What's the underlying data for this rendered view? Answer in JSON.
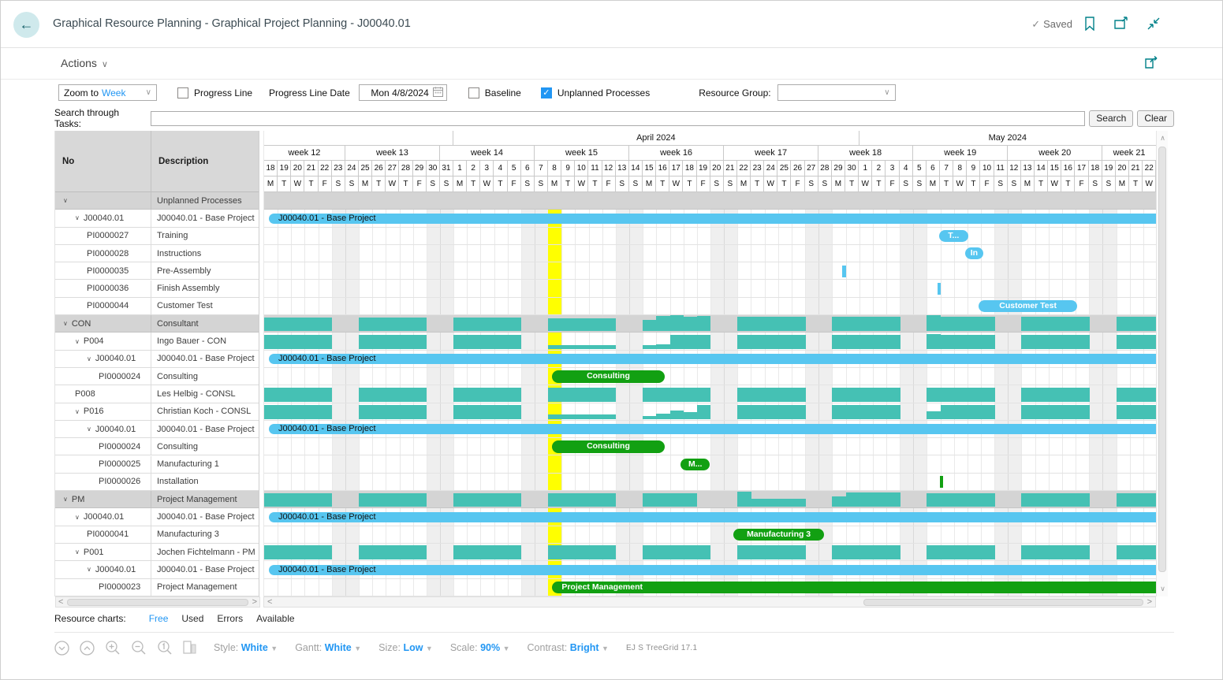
{
  "header": {
    "title": "Graphical Resource Planning - Graphical Project Planning - J00040.01",
    "saved_label": "Saved"
  },
  "actions": {
    "label": "Actions"
  },
  "controls": {
    "zoom_to_prefix": "Zoom to",
    "zoom_to_value": "Week",
    "progress_line_label": "Progress Line",
    "progress_line_date_label": "Progress Line Date",
    "progress_line_date_value": "Mon 4/8/2024",
    "baseline_label": "Baseline",
    "unplanned_label": "Unplanned Processes",
    "resource_group_label": "Resource Group:",
    "progress_line_checked": false,
    "baseline_checked": false,
    "unplanned_checked": true
  },
  "search": {
    "label": "Search through Tasks:",
    "value": "",
    "search_button": "Search",
    "clear_button": "Clear"
  },
  "table": {
    "columns": [
      "No",
      "Description"
    ]
  },
  "footer": {
    "resource_charts_label": "Resource charts:",
    "links": [
      {
        "label": "Free",
        "active": true
      },
      {
        "label": "Used",
        "active": false
      },
      {
        "label": "Errors",
        "active": false
      },
      {
        "label": "Available",
        "active": false
      }
    ]
  },
  "toolbar": {
    "style_label": "Style:",
    "style_value": "White",
    "gantt_label": "Gantt:",
    "gantt_value": "White",
    "size_label": "Size:",
    "size_value": "Low",
    "scale_label": "Scale:",
    "scale_value": "90%",
    "contrast_label": "Contrast:",
    "contrast_value": "Bright",
    "brand": "EJ S TreeGrid 17.1"
  },
  "colors": {
    "accent_teal": "#008089",
    "link_blue": "#2196F3",
    "bar_blue": "#57c6f0",
    "bar_green": "#12a012",
    "hist_teal": "#45c1b4",
    "progress_yellow": "#ffff00",
    "group_gray": "#d4d4d4"
  },
  "gantt": {
    "timeline": {
      "months": [
        {
          "label": "",
          "days": 14
        },
        {
          "label": "April 2024",
          "days": 30
        },
        {
          "label": "May 2024",
          "days": 22
        }
      ],
      "weeks": [
        {
          "label": "week 12",
          "days": 6
        },
        {
          "label": "week 13",
          "days": 7
        },
        {
          "label": "week 14",
          "days": 7
        },
        {
          "label": "week 15",
          "days": 7
        },
        {
          "label": "week 16",
          "days": 7
        },
        {
          "label": "week 17",
          "days": 7
        },
        {
          "label": "week 18",
          "days": 7
        },
        {
          "label": "week 19",
          "days": 7
        },
        {
          "label": "week 20",
          "days": 7
        },
        {
          "label": "week 21",
          "days": 4
        }
      ],
      "day_numbers": [
        18,
        19,
        20,
        21,
        22,
        23,
        24,
        25,
        26,
        27,
        28,
        29,
        30,
        31,
        1,
        2,
        3,
        4,
        5,
        6,
        7,
        8,
        9,
        10,
        11,
        12,
        13,
        14,
        15,
        16,
        17,
        18,
        19,
        20,
        21,
        22,
        23,
        24,
        25,
        26,
        27,
        28,
        29,
        30,
        1,
        2,
        3,
        4,
        5,
        6,
        7,
        8,
        9,
        10,
        11,
        12,
        13,
        14,
        15,
        16,
        17,
        18,
        19,
        20,
        21,
        22
      ],
      "day_letter_cycle": [
        "M",
        "T",
        "W",
        "T",
        "F",
        "S",
        "S"
      ],
      "progress_day_index": 21
    },
    "rows": [
      {
        "no": "",
        "desc": "Unplanned Processes",
        "level": 0,
        "chevron": true,
        "group": true
      },
      {
        "no": "J00040.01",
        "desc": "J00040.01 - Base Project",
        "level": 1,
        "chevron": true,
        "bars": [
          {
            "type": "summary",
            "s": 0.35,
            "e": 66,
            "label": "J00040.01 - Base Project"
          }
        ]
      },
      {
        "no": "PI0000027",
        "desc": "Training",
        "level": 2,
        "bars": [
          {
            "type": "bluepill",
            "s": 49.9,
            "e": 52.05,
            "label": "T..."
          }
        ]
      },
      {
        "no": "PI0000028",
        "desc": "Instructions",
        "level": 2,
        "bars": [
          {
            "type": "bluepill",
            "s": 51.85,
            "e": 53.15,
            "label": "In"
          }
        ]
      },
      {
        "no": "PI0000035",
        "desc": "Pre-Assembly",
        "level": 2,
        "bars": [
          {
            "type": "bluetick",
            "s": 42.75,
            "e": 43.0
          }
        ]
      },
      {
        "no": "PI0000036",
        "desc": "Finish Assembly",
        "level": 2,
        "bars": [
          {
            "type": "bluetick",
            "s": 49.8,
            "e": 50.05
          }
        ]
      },
      {
        "no": "PI0000044",
        "desc": "Customer Test",
        "level": 2,
        "bars": [
          {
            "type": "bluepill",
            "s": 52.85,
            "e": 60.1,
            "label": "Customer Test"
          }
        ]
      },
      {
        "no": "CON",
        "desc": "Consultant",
        "level": 0,
        "chevron": true,
        "group": true,
        "hist": [
          {
            "s": 0,
            "v": [
              0.85,
              0.85,
              0.85,
              0.85,
              0.85
            ]
          },
          {
            "s": 7,
            "v": [
              0.85,
              0.85,
              0.85,
              0.85,
              0.85
            ]
          },
          {
            "s": 14,
            "v": [
              0.85,
              0.85,
              0.85,
              0.85,
              0.85
            ]
          },
          {
            "s": 21,
            "v": [
              0.8,
              0.8,
              0.8,
              0.8,
              0.8
            ]
          },
          {
            "s": 28,
            "v": [
              0.72,
              0.95,
              1,
              0.9,
              0.98
            ]
          },
          {
            "s": 35,
            "v": [
              0.9,
              0.9,
              0.9,
              0.9,
              0.9
            ]
          },
          {
            "s": 42,
            "v": [
              0.9,
              0.9,
              0.9,
              0.9,
              0.9
            ]
          },
          {
            "s": 49,
            "v": [
              1,
              0.9,
              0.9,
              0.9,
              0.9
            ]
          },
          {
            "s": 56,
            "v": [
              0.9,
              0.9,
              0.9,
              0.9,
              0.9
            ]
          },
          {
            "s": 63,
            "v": [
              0.9,
              0.9,
              0.9
            ]
          }
        ]
      },
      {
        "no": "P004",
        "desc": "Ingo Bauer - CON",
        "level": 1,
        "chevron": true,
        "hist": [
          {
            "s": 0,
            "v": [
              0.95,
              0.95,
              0.95,
              0.95,
              0.95
            ]
          },
          {
            "s": 7,
            "v": [
              0.95,
              0.95,
              0.95,
              0.95,
              0.95
            ]
          },
          {
            "s": 14,
            "v": [
              0.95,
              0.95,
              0.95,
              0.95,
              0.95
            ]
          },
          {
            "s": 21,
            "v": [
              0.25,
              0.25,
              0.25,
              0.25,
              0.25
            ]
          },
          {
            "s": 28,
            "v": [
              0.25,
              0.3,
              0.95,
              0.95,
              0.95
            ]
          },
          {
            "s": 35,
            "v": [
              0.95,
              0.95,
              0.95,
              0.95,
              0.95
            ]
          },
          {
            "s": 42,
            "v": [
              0.95,
              0.95,
              0.95,
              0.95,
              0.95
            ]
          },
          {
            "s": 49,
            "v": [
              1,
              0.95,
              0.95,
              0.95,
              0.95
            ]
          },
          {
            "s": 56,
            "v": [
              0.95,
              0.95,
              0.95,
              0.95,
              0.95
            ]
          },
          {
            "s": 63,
            "v": [
              0.95,
              0.95,
              0.95
            ]
          }
        ]
      },
      {
        "no": "J00040.01",
        "desc": "J00040.01 - Base Project",
        "level": 2,
        "chevron": true,
        "bars": [
          {
            "type": "summary",
            "s": 0.35,
            "e": 66,
            "label": "J00040.01 - Base Project"
          }
        ]
      },
      {
        "no": "PI0000024",
        "desc": "Consulting",
        "level": 3,
        "bars": [
          {
            "type": "greenpill",
            "s": 21.3,
            "e": 29.6,
            "label": "Consulting"
          }
        ]
      },
      {
        "no": "P008",
        "desc": "Les Helbig - CONSL",
        "level": 1,
        "hist": [
          {
            "s": 0,
            "v": [
              0.95,
              0.95,
              0.95,
              0.95,
              0.95
            ]
          },
          {
            "s": 7,
            "v": [
              0.95,
              0.95,
              0.95,
              0.95,
              0.95
            ]
          },
          {
            "s": 14,
            "v": [
              0.95,
              0.95,
              0.95,
              0.95,
              0.95
            ]
          },
          {
            "s": 21,
            "v": [
              0.95,
              0.95,
              0.95,
              0.95,
              0.95
            ]
          },
          {
            "s": 28,
            "v": [
              0.95,
              0.95,
              0.95,
              0.95,
              0.95
            ]
          },
          {
            "s": 35,
            "v": [
              0.95,
              0.95,
              0.95,
              0.95,
              0.95
            ]
          },
          {
            "s": 42,
            "v": [
              0.95,
              0.95,
              0.95,
              0.95,
              0.95
            ]
          },
          {
            "s": 49,
            "v": [
              0.95,
              0.95,
              0.95,
              0.95,
              0.95
            ]
          },
          {
            "s": 56,
            "v": [
              0.95,
              0.95,
              0.95,
              0.95,
              0.95
            ]
          },
          {
            "s": 63,
            "v": [
              0.95,
              0.95,
              0.95
            ]
          }
        ]
      },
      {
        "no": "P016",
        "desc": "Christian Koch - CONSL",
        "level": 1,
        "chevron": true,
        "hist": [
          {
            "s": 0,
            "v": [
              0.95,
              0.95,
              0.95,
              0.95,
              0.95
            ]
          },
          {
            "s": 7,
            "v": [
              0.95,
              0.95,
              0.95,
              0.95,
              0.95
            ]
          },
          {
            "s": 14,
            "v": [
              0.95,
              0.95,
              0.95,
              0.95,
              0.95
            ]
          },
          {
            "s": 21,
            "v": [
              0.3,
              0.3,
              0.3,
              0.3,
              0.3
            ]
          },
          {
            "s": 28,
            "v": [
              0.2,
              0.35,
              0.6,
              0.45,
              0.95
            ]
          },
          {
            "s": 35,
            "v": [
              0.95,
              0.95,
              0.95,
              0.95,
              0.95
            ]
          },
          {
            "s": 42,
            "v": [
              0.95,
              0.95,
              0.95,
              0.95,
              0.95
            ]
          },
          {
            "s": 49,
            "v": [
              0.5,
              0.95,
              0.95,
              0.95,
              0.95
            ]
          },
          {
            "s": 56,
            "v": [
              0.95,
              0.95,
              0.95,
              0.95,
              0.95
            ]
          },
          {
            "s": 63,
            "v": [
              0.95,
              0.95,
              0.95
            ]
          }
        ]
      },
      {
        "no": "J00040.01",
        "desc": "J00040.01 - Base Project",
        "level": 2,
        "chevron": true,
        "bars": [
          {
            "type": "summary",
            "s": 0.35,
            "e": 66,
            "label": "J00040.01 - Base Project"
          }
        ]
      },
      {
        "no": "PI0000024",
        "desc": "Consulting",
        "level": 3,
        "bars": [
          {
            "type": "greenpill",
            "s": 21.3,
            "e": 29.6,
            "label": "Consulting"
          }
        ]
      },
      {
        "no": "PI0000025",
        "desc": "Manufacturing 1",
        "level": 3,
        "bars": [
          {
            "type": "greenpill",
            "s": 30.8,
            "e": 32.95,
            "label": "M..."
          }
        ]
      },
      {
        "no": "PI0000026",
        "desc": "Installation",
        "level": 3,
        "bars": [
          {
            "type": "greentick",
            "s": 49.95,
            "e": 50.2
          }
        ]
      },
      {
        "no": "PM",
        "desc": "Project Management",
        "level": 0,
        "chevron": true,
        "group": true,
        "hist": [
          {
            "s": 0,
            "v": [
              0.85,
              0.85,
              0.85,
              0.85,
              0.85
            ]
          },
          {
            "s": 7,
            "v": [
              0.85,
              0.85,
              0.85,
              0.85,
              0.85
            ]
          },
          {
            "s": 14,
            "v": [
              0.85,
              0.85,
              0.85,
              0.85,
              0.85
            ]
          },
          {
            "s": 21,
            "v": [
              0.85,
              0.85,
              0.85,
              0.85,
              0.85
            ]
          },
          {
            "s": 28,
            "v": [
              0.85,
              0.85,
              0.85,
              0.85,
              0
            ]
          },
          {
            "s": 35,
            "v": [
              0.95,
              0.5,
              0.5,
              0.5,
              0.5
            ]
          },
          {
            "s": 42,
            "v": [
              0.65,
              0.9,
              0.9,
              0.9,
              0.9
            ]
          },
          {
            "s": 49,
            "v": [
              0.85,
              0.85,
              0.85,
              0.85,
              0.85
            ]
          },
          {
            "s": 56,
            "v": [
              0.85,
              0.85,
              0.85,
              0.85,
              0.85
            ]
          },
          {
            "s": 63,
            "v": [
              0.85,
              0.85,
              0.85
            ]
          }
        ]
      },
      {
        "no": "J00040.01",
        "desc": "J00040.01 - Base Project",
        "level": 1,
        "chevron": true,
        "bars": [
          {
            "type": "summary",
            "s": 0.35,
            "e": 66,
            "label": "J00040.01 - Base Project"
          }
        ]
      },
      {
        "no": "PI0000041",
        "desc": "Manufacturing 3",
        "level": 2,
        "bars": [
          {
            "type": "greenpill",
            "s": 34.7,
            "e": 41.4,
            "label": "Manufacturing 3"
          }
        ]
      },
      {
        "no": "P001",
        "desc": "Jochen Fichtelmann - PM",
        "level": 1,
        "chevron": true,
        "hist": [
          {
            "s": 0,
            "v": [
              0.95,
              0.95,
              0.95,
              0.95,
              0.95
            ]
          },
          {
            "s": 7,
            "v": [
              0.95,
              0.95,
              0.95,
              0.95,
              0.95
            ]
          },
          {
            "s": 14,
            "v": [
              0.95,
              0.95,
              0.95,
              0.95,
              0.95
            ]
          },
          {
            "s": 21,
            "v": [
              0.95,
              0.95,
              0.95,
              0.95,
              0.95
            ]
          },
          {
            "s": 28,
            "v": [
              0.95,
              0.95,
              0.95,
              0.95,
              0.95
            ]
          },
          {
            "s": 35,
            "v": [
              0.95,
              0.95,
              0.95,
              0.95,
              0.95
            ]
          },
          {
            "s": 42,
            "v": [
              0.95,
              0.95,
              0.95,
              0.95,
              0.95
            ]
          },
          {
            "s": 49,
            "v": [
              0.95,
              0.95,
              0.95,
              0.95,
              0.95
            ]
          },
          {
            "s": 56,
            "v": [
              0.95,
              0.95,
              0.95,
              0.95,
              0.95
            ]
          },
          {
            "s": 63,
            "v": [
              0.95,
              0.95,
              0.95
            ]
          }
        ]
      },
      {
        "no": "J00040.01",
        "desc": "J00040.01 - Base Project",
        "level": 2,
        "chevron": true,
        "bars": [
          {
            "type": "summary",
            "s": 0.35,
            "e": 66,
            "label": "J00040.01 - Base Project"
          }
        ]
      },
      {
        "no": "PI0000023",
        "desc": "Project Management",
        "level": 3,
        "bars": [
          {
            "type": "greenlong",
            "s": 21.3,
            "e": 66,
            "label": "Project Management"
          }
        ]
      }
    ]
  }
}
